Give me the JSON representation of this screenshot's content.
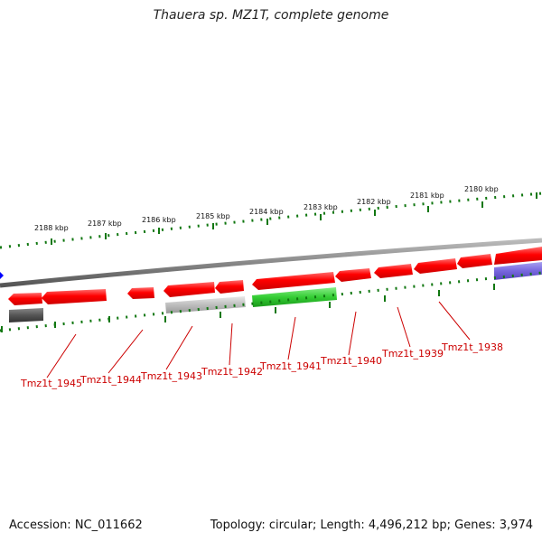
{
  "title": "Thauera sp. MZ1T, complete genome",
  "footer": {
    "accession": "Accession: NC_011662",
    "summary": "Topology: circular; Length: 4,496,212 bp; Genes: 3,974"
  },
  "scale_labels": [
    "2188 kbp",
    "2187 kbp",
    "2186 kbp",
    "2185 kbp",
    "2184 kbp",
    "2183 kbp",
    "2182 kbp",
    "2181 kbp",
    "2180 kbp"
  ],
  "gene_labels": [
    "Tmz1t_1945",
    "Tmz1t_1944",
    "Tmz1t_1943",
    "Tmz1t_1942",
    "Tmz1t_1941",
    "Tmz1t_1940",
    "Tmz1t_1939",
    "Tmz1t_1938"
  ],
  "colors": {
    "cds": "#ff0000",
    "rna": "#bbbbbb",
    "dark_feature": "#555555",
    "green_feature": "#33cc33",
    "blue_feature": "#7766dd",
    "tick": "#117711",
    "label": "#cc0000",
    "backbone": "#888888",
    "marker": "#0000ff"
  }
}
